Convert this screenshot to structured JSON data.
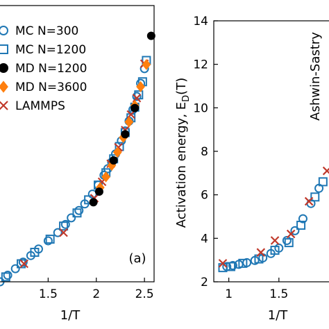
{
  "series_styles": {
    "MC N=300": {
      "marker": "circle",
      "color": "#1f77b4",
      "fill": "none"
    },
    "MC N=1200": {
      "marker": "square",
      "color": "#1f77b4",
      "fill": "none"
    },
    "MD N=1200": {
      "marker": "circle",
      "color": "#000000",
      "fill": "#000000"
    },
    "MD N=3600": {
      "marker": "diamond",
      "color": "#ff7f0e",
      "fill": "#ff7f0e"
    },
    "LAMMPS": {
      "marker": "x",
      "color": "#c0392b",
      "fill": "none"
    }
  },
  "chart_data": [
    {
      "type": "scatter",
      "panel_label": "(a)",
      "xlabel": "1/T",
      "ylabel": "",
      "xlim": [
        1.0,
        2.6
      ],
      "xticks": [
        "1.5",
        "2",
        "2.5"
      ],
      "legend": [
        "MC N=300",
        "MC N=1200",
        "MD N=1200",
        "MD N=3600",
        "LAMMPS"
      ],
      "legend_position": "top-left",
      "series": [
        {
          "name": "MC N=300",
          "x": [
            1.0,
            1.08,
            1.16,
            1.24,
            1.32,
            1.4,
            1.5,
            1.6,
            1.68,
            1.74,
            1.82,
            1.88,
            1.96,
            2.02,
            2.08,
            2.12,
            2.16,
            2.2,
            2.26,
            2.3,
            2.34,
            2.38,
            2.42,
            2.46,
            2.5
          ],
          "y": [
            0.0,
            0.08,
            0.16,
            0.24,
            0.32,
            0.4,
            0.5,
            0.6,
            0.7,
            0.78,
            0.87,
            0.95,
            1.07,
            1.18,
            1.3,
            1.38,
            1.46,
            1.56,
            1.72,
            1.84,
            1.96,
            2.1,
            2.26,
            2.42,
            2.6
          ]
        },
        {
          "name": "MC N=1200",
          "x": [
            1.06,
            1.22,
            1.36,
            1.52,
            1.66,
            1.8,
            1.92,
            2.02,
            2.1,
            2.18,
            2.24,
            2.3,
            2.36,
            2.4,
            2.44,
            2.48,
            2.52
          ],
          "y": [
            0.06,
            0.22,
            0.36,
            0.52,
            0.68,
            0.84,
            1.0,
            1.18,
            1.33,
            1.5,
            1.65,
            1.82,
            2.0,
            2.13,
            2.28,
            2.44,
            2.7
          ]
        },
        {
          "name": "MD N=1200",
          "x": [
            1.97,
            2.03,
            2.18,
            2.3,
            2.4,
            2.57
          ],
          "y": [
            0.97,
            1.1,
            1.48,
            1.8,
            2.12,
            3.0
          ]
        },
        {
          "name": "MD N=3600",
          "x": [
            2.04,
            2.1,
            2.16,
            2.22,
            2.28,
            2.34,
            2.4,
            2.46,
            2.52
          ],
          "y": [
            1.15,
            1.28,
            1.42,
            1.58,
            1.76,
            1.95,
            2.15,
            2.38,
            2.65
          ]
        },
        {
          "name": "LAMMPS",
          "x": [
            1.25,
            1.66,
            1.98,
            2.06,
            2.15,
            2.23,
            2.3,
            2.36,
            2.42,
            2.5
          ],
          "y": [
            0.22,
            0.6,
            1.02,
            1.22,
            1.44,
            1.64,
            1.85,
            2.04,
            2.24,
            2.66
          ]
        }
      ]
    },
    {
      "type": "scatter",
      "xlabel": "1/T",
      "ylabel": "Activation energy, E_D(T)",
      "ylabel_main": "Activation energy, E",
      "ylabel_sub": "D",
      "ylabel_tail": "(T)",
      "annotation": "Ashwin-Sastry",
      "xlim": [
        0.85,
        2.0
      ],
      "ylim": [
        2,
        14
      ],
      "xticks": [
        "1",
        "1.5"
      ],
      "yticks": [
        "2",
        "4",
        "6",
        "8",
        "10",
        "12",
        "14"
      ],
      "series": [
        {
          "name": "MC N=300",
          "x": [
            0.98,
            1.04,
            1.1,
            1.18,
            1.26,
            1.34,
            1.42,
            1.5,
            1.58,
            1.66,
            1.74,
            1.82,
            1.9
          ],
          "y": [
            2.7,
            2.75,
            2.8,
            2.88,
            2.98,
            3.1,
            3.3,
            3.55,
            3.9,
            4.35,
            4.9,
            5.6,
            6.3
          ]
        },
        {
          "name": "MC N=1200",
          "x": [
            0.94,
            1.02,
            1.14,
            1.3,
            1.46,
            1.6,
            1.72,
            1.86,
            1.94
          ],
          "y": [
            2.65,
            2.7,
            2.85,
            3.05,
            3.45,
            3.8,
            4.6,
            5.9,
            6.6
          ]
        },
        {
          "name": "LAMMPS",
          "x": [
            0.94,
            1.32,
            1.46,
            1.62,
            1.8,
            1.98
          ],
          "y": [
            2.85,
            3.35,
            3.9,
            4.2,
            5.7,
            7.1
          ]
        }
      ]
    }
  ]
}
